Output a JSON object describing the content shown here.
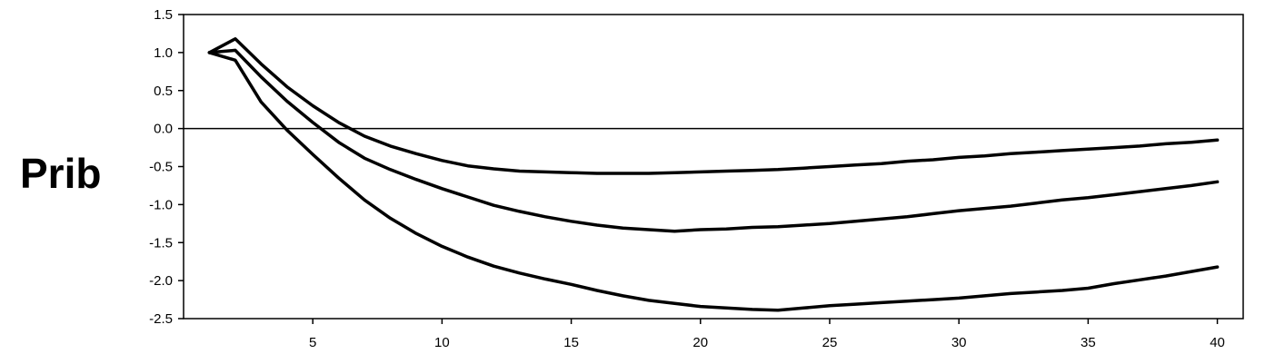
{
  "row_label": "Prib",
  "colors": {
    "line": "#000000",
    "frame": "#000000",
    "background": "#ffffff"
  },
  "chart_data": {
    "type": "line",
    "title": "",
    "xlabel": "",
    "ylabel": "",
    "xlim": [
      0,
      41
    ],
    "ylim": [
      -2.5,
      1.5
    ],
    "x_ticks": [
      5,
      10,
      15,
      20,
      25,
      30,
      35,
      40
    ],
    "x_tick_labels": [
      "5",
      "10",
      "15",
      "20",
      "25",
      "30",
      "35",
      "40"
    ],
    "y_ticks": [
      1.5,
      1.0,
      0.5,
      0.0,
      -0.5,
      -1.0,
      -1.5,
      -2.0,
      -2.5
    ],
    "y_tick_labels": [
      "1.5",
      "1.0",
      "0.5",
      "0.0",
      "-0.5",
      "-1.0",
      "-1.5",
      "-2.0",
      "-2.5"
    ],
    "zero_line": true,
    "grid": false,
    "legend": "none",
    "x": [
      1,
      2,
      3,
      4,
      5,
      6,
      7,
      8,
      9,
      10,
      11,
      12,
      13,
      14,
      15,
      16,
      17,
      18,
      19,
      20,
      21,
      22,
      23,
      24,
      25,
      26,
      27,
      28,
      29,
      30,
      31,
      32,
      33,
      34,
      35,
      36,
      37,
      38,
      39,
      40
    ],
    "series": [
      {
        "values": [
          1.0,
          1.18,
          0.85,
          0.55,
          0.3,
          0.08,
          -0.1,
          -0.23,
          -0.33,
          -0.42,
          -0.49,
          -0.53,
          -0.56,
          -0.57,
          -0.58,
          -0.59,
          -0.59,
          -0.59,
          -0.58,
          -0.57,
          -0.56,
          -0.55,
          -0.54,
          -0.52,
          -0.5,
          -0.48,
          -0.46,
          -0.43,
          -0.41,
          -0.38,
          -0.36,
          -0.33,
          -0.31,
          -0.29,
          -0.27,
          -0.25,
          -0.23,
          -0.2,
          -0.18,
          -0.15
        ]
      },
      {
        "values": [
          1.0,
          1.03,
          0.68,
          0.36,
          0.08,
          -0.18,
          -0.39,
          -0.54,
          -0.67,
          -0.79,
          -0.9,
          -1.01,
          -1.09,
          -1.16,
          -1.22,
          -1.27,
          -1.31,
          -1.33,
          -1.35,
          -1.33,
          -1.32,
          -1.3,
          -1.29,
          -1.27,
          -1.25,
          -1.22,
          -1.19,
          -1.16,
          -1.12,
          -1.08,
          -1.05,
          -1.02,
          -0.98,
          -0.94,
          -0.91,
          -0.87,
          -0.83,
          -0.79,
          -0.75,
          -0.7
        ]
      },
      {
        "values": [
          1.0,
          0.9,
          0.35,
          -0.02,
          -0.34,
          -0.65,
          -0.94,
          -1.18,
          -1.38,
          -1.55,
          -1.69,
          -1.81,
          -1.9,
          -1.98,
          -2.05,
          -2.13,
          -2.2,
          -2.26,
          -2.3,
          -2.34,
          -2.36,
          -2.38,
          -2.39,
          -2.36,
          -2.33,
          -2.31,
          -2.29,
          -2.27,
          -2.25,
          -2.23,
          -2.2,
          -2.17,
          -2.15,
          -2.13,
          -2.1,
          -2.04,
          -1.99,
          -1.94,
          -1.88,
          -1.82
        ]
      }
    ]
  }
}
